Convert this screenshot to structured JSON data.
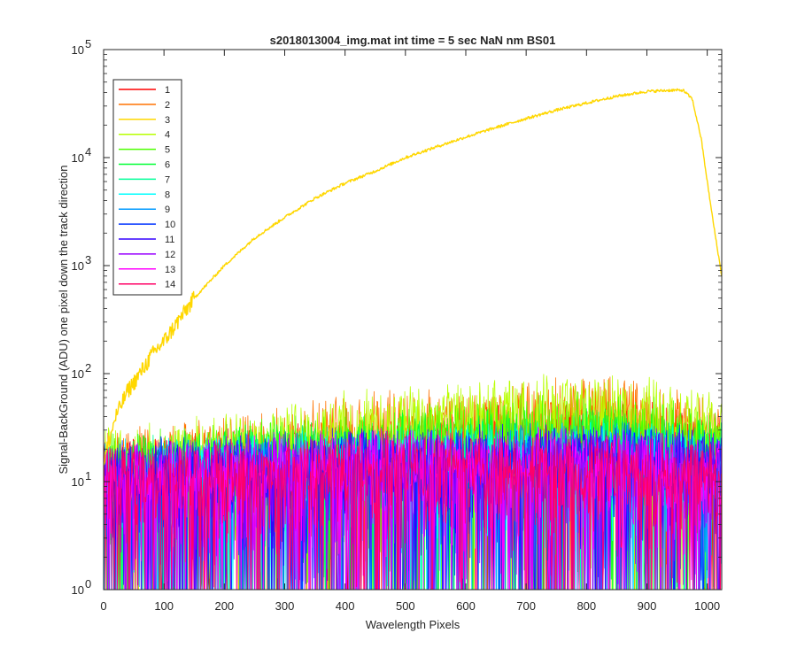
{
  "chart_data": {
    "type": "line",
    "title": "s2018013004_img.mat int time = 5 sec  NaN nm BS01",
    "xlabel": "Wavelength Pixels",
    "ylabel": "Signal-BackGround (ADU) one pixel down the track direction",
    "xlim": [
      0,
      1024
    ],
    "ylim": [
      1,
      100000
    ],
    "yscale": "log",
    "grid": false,
    "legend_position": "top-left",
    "x_ticks": [
      "0",
      "100",
      "200",
      "300",
      "400",
      "500",
      "600",
      "700",
      "800",
      "900",
      "1000"
    ],
    "y_ticks": [
      {
        "value": 1,
        "base": "10",
        "exp": "0"
      },
      {
        "value": 10,
        "base": "10",
        "exp": "1"
      },
      {
        "value": 100,
        "base": "10",
        "exp": "2"
      },
      {
        "value": 1000,
        "base": "10",
        "exp": "3"
      },
      {
        "value": 10000,
        "base": "10",
        "exp": "4"
      },
      {
        "value": 100000,
        "base": "10",
        "exp": "5"
      }
    ],
    "series": [
      {
        "name": "1",
        "color": "#ff0000",
        "envelope": {
          "x": [
            0,
            200,
            400,
            600,
            700,
            800,
            900,
            1024
          ],
          "y": [
            20,
            22,
            28,
            35,
            42,
            45,
            40,
            30
          ]
        },
        "floor": 1
      },
      {
        "name": "2",
        "color": "#ff7200",
        "envelope": {
          "x": [
            0,
            200,
            400,
            600,
            700,
            800,
            900,
            1024
          ],
          "y": [
            22,
            28,
            45,
            55,
            62,
            70,
            65,
            40
          ]
        },
        "floor": 1
      },
      {
        "name": "3",
        "color": "#ffd700",
        "curve": {
          "x": [
            0,
            10,
            20,
            40,
            60,
            80,
            100,
            150,
            200,
            250,
            300,
            350,
            400,
            450,
            500,
            550,
            600,
            650,
            700,
            750,
            800,
            850,
            900,
            940,
            960,
            975,
            990,
            1000,
            1010,
            1024
          ],
          "y": [
            15,
            25,
            40,
            70,
            100,
            150,
            200,
            500,
            1000,
            1800,
            2800,
            4200,
            5800,
            7500,
            10000,
            12500,
            15500,
            19000,
            23000,
            27500,
            32000,
            37000,
            41000,
            42000,
            42000,
            35000,
            15000,
            6000,
            2500,
            800
          ]
        }
      },
      {
        "name": "4",
        "color": "#b8ff00",
        "envelope": {
          "x": [
            0,
            200,
            400,
            600,
            700,
            800,
            900,
            1024
          ],
          "y": [
            22,
            30,
            48,
            60,
            68,
            75,
            70,
            45
          ]
        },
        "floor": 1
      },
      {
        "name": "5",
        "color": "#4dff00",
        "envelope": {
          "x": [
            0,
            200,
            400,
            600,
            700,
            800,
            900,
            1024
          ],
          "y": [
            20,
            25,
            35,
            42,
            46,
            50,
            48,
            35
          ]
        },
        "floor": 1
      },
      {
        "name": "6",
        "color": "#00ff33",
        "envelope": {
          "x": [
            0,
            200,
            400,
            600,
            700,
            800,
            900,
            1024
          ],
          "y": [
            18,
            22,
            28,
            32,
            34,
            36,
            34,
            28
          ]
        },
        "floor": 1
      },
      {
        "name": "7",
        "color": "#00ff99",
        "envelope": {
          "x": [
            0,
            200,
            400,
            600,
            700,
            800,
            900,
            1024
          ],
          "y": [
            18,
            20,
            24,
            26,
            27,
            28,
            27,
            24
          ]
        },
        "floor": 1
      },
      {
        "name": "8",
        "color": "#00ffff",
        "envelope": {
          "x": [
            0,
            200,
            400,
            600,
            700,
            800,
            900,
            1024
          ],
          "y": [
            17,
            19,
            22,
            24,
            25,
            26,
            25,
            22
          ]
        },
        "floor": 1
      },
      {
        "name": "9",
        "color": "#0099ff",
        "envelope": {
          "x": [
            0,
            200,
            400,
            600,
            700,
            800,
            900,
            1024
          ],
          "y": [
            17,
            19,
            22,
            23,
            24,
            25,
            24,
            21
          ]
        },
        "floor": 1
      },
      {
        "name": "10",
        "color": "#0033ff",
        "envelope": {
          "x": [
            0,
            200,
            400,
            600,
            700,
            800,
            900,
            1024
          ],
          "y": [
            17,
            19,
            22,
            23,
            24,
            25,
            24,
            21
          ]
        },
        "floor": 1
      },
      {
        "name": "11",
        "color": "#3300ff",
        "envelope": {
          "x": [
            0,
            200,
            400,
            600,
            700,
            800,
            900,
            1024
          ],
          "y": [
            17,
            19,
            22,
            23,
            24,
            24,
            23,
            21
          ]
        },
        "floor": 1
      },
      {
        "name": "12",
        "color": "#9900ff",
        "envelope": {
          "x": [
            0,
            200,
            400,
            600,
            700,
            800,
            900,
            1024
          ],
          "y": [
            17,
            19,
            21,
            22,
            23,
            23,
            22,
            20
          ]
        },
        "floor": 1
      },
      {
        "name": "13",
        "color": "#ff00ff",
        "envelope": {
          "x": [
            0,
            200,
            400,
            600,
            700,
            800,
            900,
            1024
          ],
          "y": [
            17,
            19,
            21,
            22,
            22,
            22,
            21,
            20
          ]
        },
        "floor": 1
      },
      {
        "name": "14",
        "color": "#ff0066",
        "envelope": {
          "x": [
            0,
            200,
            400,
            600,
            700,
            800,
            900,
            1024
          ],
          "y": [
            16,
            18,
            20,
            21,
            21,
            21,
            20,
            19
          ]
        },
        "floor": 1
      }
    ]
  }
}
